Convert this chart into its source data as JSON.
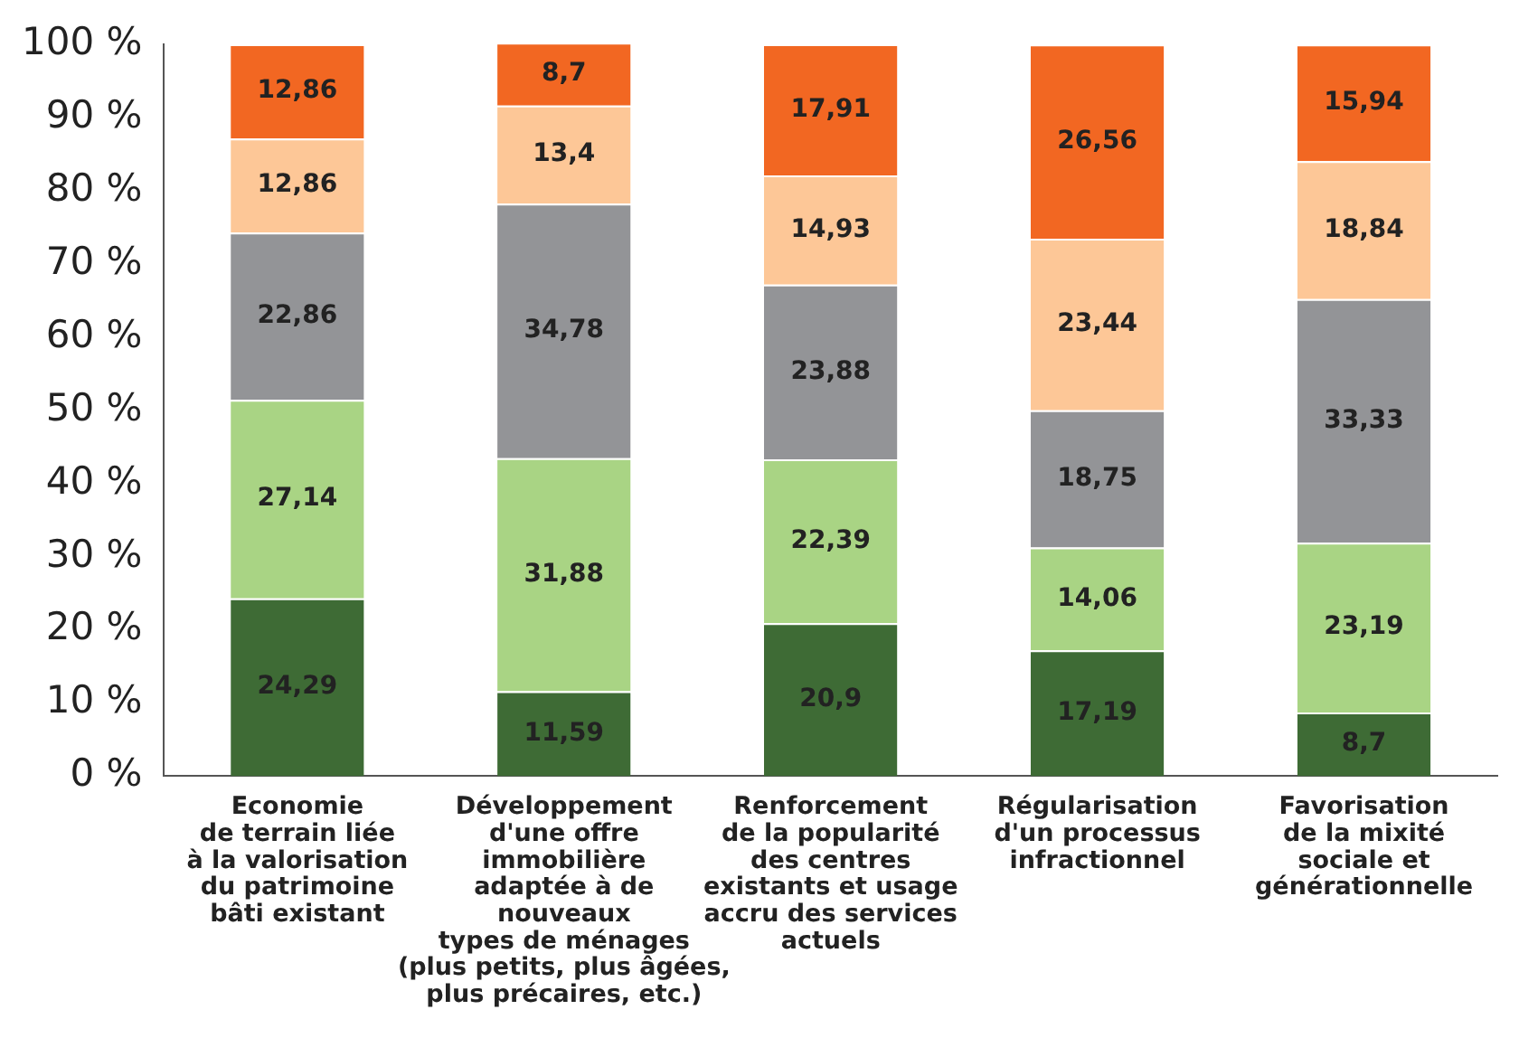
{
  "chart_data": {
    "type": "bar",
    "stacked": true,
    "grid": false,
    "legend": false,
    "categories": [
      "Economie\nde terrain liée\nà la valorisation\ndu patrimoine\nbâti existant",
      "Développement\nd'une offre\nimmobilière\nadaptée à de\nnouveaux\ntypes de ménages\n(plus petits, plus âgées,\nplus précaires, etc.)",
      "Renforcement\nde la popularité\ndes centres\nexistants et usage\naccru des services\nactuels",
      "Régularisation\nd'un processus\ninfractionnel",
      "Favorisation\nde la mixité\nsociale et\ngénérationnelle"
    ],
    "series": [
      {
        "color": "#3e6b35",
        "values": [
          24.29,
          11.59,
          20.9,
          17.19,
          8.7
        ],
        "value_labels": [
          "24,29",
          "11,59",
          "20,9",
          "17,19",
          "8,7"
        ]
      },
      {
        "color": "#a9d484",
        "values": [
          27.14,
          31.88,
          22.39,
          14.06,
          23.19
        ],
        "value_labels": [
          "27,14",
          "31,88",
          "22,39",
          "14,06",
          "23,19"
        ]
      },
      {
        "color": "#939497",
        "values": [
          22.86,
          34.78,
          23.88,
          18.75,
          33.33
        ],
        "value_labels": [
          "22,86",
          "34,78",
          "23,88",
          "18,75",
          "33,33"
        ]
      },
      {
        "color": "#fdc797",
        "values": [
          12.86,
          13.4,
          14.93,
          23.44,
          18.84
        ],
        "value_labels": [
          "12,86",
          "13,4",
          "14,93",
          "23,44",
          "18,84"
        ]
      },
      {
        "color": "#f26722",
        "values": [
          12.86,
          8.7,
          17.91,
          26.56,
          15.94
        ],
        "value_labels": [
          "12,86",
          "8,7",
          "17,91",
          "26,56",
          "15,94"
        ]
      }
    ],
    "ylim": [
      0,
      100
    ],
    "yticks": [
      {
        "value": 0,
        "label": "0 %"
      },
      {
        "value": 10,
        "label": "10 %"
      },
      {
        "value": 20,
        "label": "20 %"
      },
      {
        "value": 30,
        "label": "30 %"
      },
      {
        "value": 40,
        "label": "40 %"
      },
      {
        "value": 50,
        "label": "50 %"
      },
      {
        "value": 60,
        "label": "60 %"
      },
      {
        "value": 70,
        "label": "70 %"
      },
      {
        "value": 80,
        "label": "80 %"
      },
      {
        "value": 90,
        "label": "90 %"
      },
      {
        "value": 100,
        "label": "100 %"
      }
    ]
  }
}
